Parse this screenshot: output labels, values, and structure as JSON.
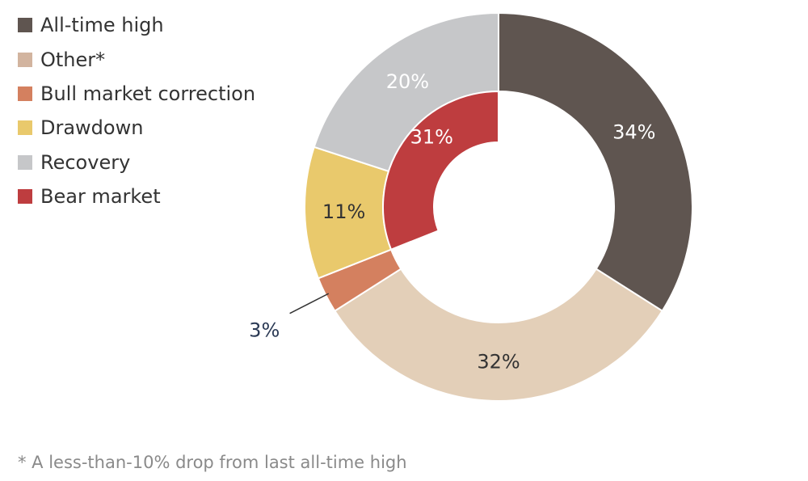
{
  "chart_data": {
    "type": "pie",
    "title": "",
    "legend_position": "top-left",
    "legend": [
      {
        "label": "All-time high",
        "color": "#5f5550"
      },
      {
        "label": "Other*",
        "color": "#d2b49f"
      },
      {
        "label": "Bull market correction",
        "color": "#d4805f"
      },
      {
        "label": "Drawdown",
        "color": "#e9c96c"
      },
      {
        "label": "Recovery",
        "color": "#c6c7c9"
      },
      {
        "label": "Bear market",
        "color": "#be3d3f"
      }
    ],
    "outer_ring": [
      {
        "name": "All-time high",
        "value": 34,
        "label": "34%",
        "color": "#5f5550",
        "label_color": "#ffffff"
      },
      {
        "name": "Other*",
        "value": 32,
        "label": "32%",
        "color": "#e3cfb8",
        "label_color": "#333333"
      },
      {
        "name": "Bull market correction",
        "value": 3,
        "label": "3%",
        "color": "#d4805f",
        "label_color": "#2b3a55",
        "callout": true
      },
      {
        "name": "Drawdown",
        "value": 11,
        "label": "11%",
        "color": "#e9c96c",
        "label_color": "#333333"
      },
      {
        "name": "Recovery",
        "value": 20,
        "label": "20%",
        "color": "#c6c7c9",
        "label_color": "#ffffff"
      }
    ],
    "inner_ring": [
      {
        "name": "Bear market",
        "value": 31,
        "label": "31%",
        "color": "#be3d3f",
        "label_color": "#ffffff",
        "start_offset": 69
      }
    ]
  },
  "footnote": "* A less-than-10% drop from last all-time high"
}
